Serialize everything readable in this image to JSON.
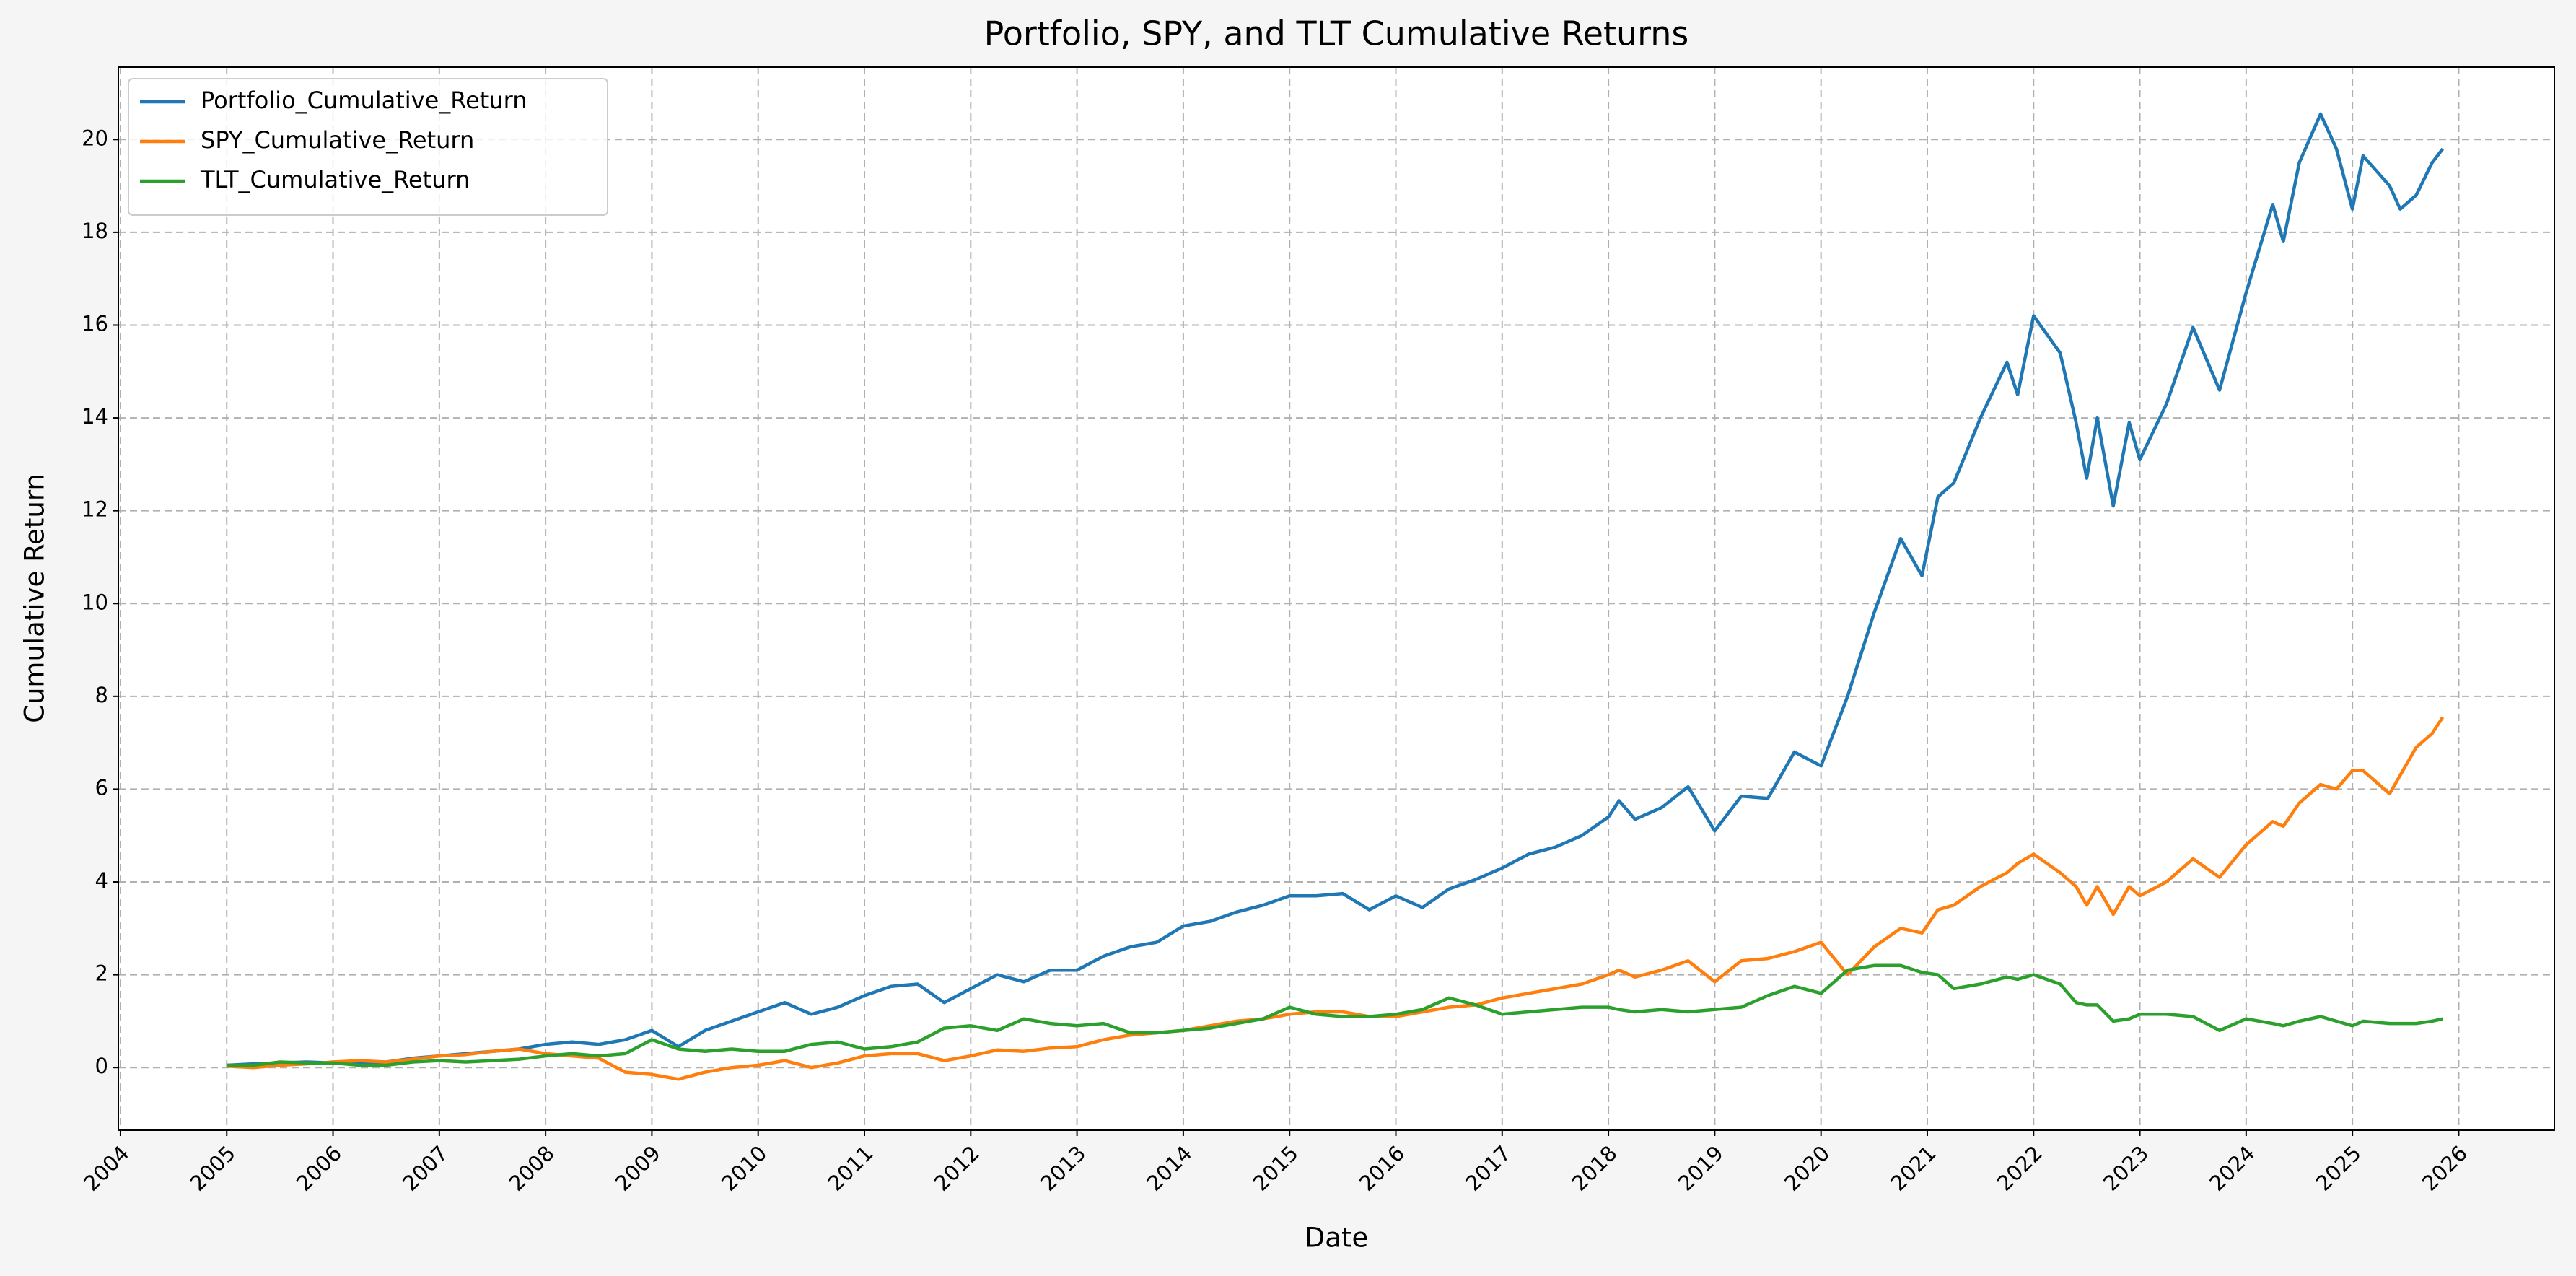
{
  "chart_data": {
    "type": "line",
    "title": "Portfolio, SPY, and TLT Cumulative Returns",
    "x_label": "Date",
    "y_label": "Cumulative Return",
    "x": [
      2005,
      2005.25,
      2005.5,
      2005.75,
      2006,
      2006.25,
      2006.5,
      2006.75,
      2007,
      2007.25,
      2007.5,
      2007.75,
      2008,
      2008.25,
      2008.5,
      2008.75,
      2009,
      2009.25,
      2009.5,
      2009.75,
      2010,
      2010.25,
      2010.5,
      2010.75,
      2011,
      2011.25,
      2011.5,
      2011.75,
      2012,
      2012.25,
      2012.5,
      2012.75,
      2013,
      2013.25,
      2013.5,
      2013.75,
      2014,
      2014.25,
      2014.5,
      2014.75,
      2015,
      2015.25,
      2015.5,
      2015.75,
      2016,
      2016.25,
      2016.5,
      2016.75,
      2017,
      2017.25,
      2017.5,
      2017.75,
      2018,
      2018.1,
      2018.25,
      2018.5,
      2018.75,
      2019,
      2019.25,
      2019.5,
      2019.75,
      2020,
      2020.25,
      2020.5,
      2020.75,
      2020.95,
      2021.1,
      2021.25,
      2021.5,
      2021.75,
      2021.85,
      2022,
      2022.25,
      2022.4,
      2022.5,
      2022.6,
      2022.75,
      2022.9,
      2023,
      2023.25,
      2023.5,
      2023.75,
      2024,
      2024.25,
      2024.35,
      2024.5,
      2024.7,
      2024.85,
      2025,
      2025.1,
      2025.35,
      2025.45,
      2025.6,
      2025.75,
      2025.85
    ],
    "series": [
      {
        "name": "Portfolio_Cumulative_Return",
        "color": "#1f77b4",
        "values": [
          0.05,
          0.08,
          0.1,
          0.12,
          0.1,
          0.1,
          0.12,
          0.2,
          0.25,
          0.3,
          0.35,
          0.4,
          0.5,
          0.55,
          0.5,
          0.6,
          0.8,
          0.45,
          0.8,
          1.0,
          1.2,
          1.4,
          1.15,
          1.3,
          1.55,
          1.75,
          1.8,
          1.4,
          1.7,
          2.0,
          1.85,
          2.1,
          2.1,
          2.4,
          2.6,
          2.7,
          3.05,
          3.15,
          3.35,
          3.5,
          3.7,
          3.7,
          3.75,
          3.4,
          3.7,
          3.45,
          3.85,
          4.05,
          4.3,
          4.6,
          4.75,
          5.0,
          5.4,
          5.75,
          5.35,
          5.6,
          6.05,
          5.1,
          5.85,
          5.8,
          6.8,
          6.5,
          8.0,
          9.8,
          11.4,
          10.6,
          12.3,
          12.6,
          14.0,
          15.2,
          14.5,
          16.2,
          15.4,
          13.9,
          12.7,
          14.0,
          12.1,
          13.9,
          13.1,
          14.3,
          15.95,
          14.6,
          16.7,
          18.6,
          17.8,
          19.5,
          20.55,
          19.8,
          18.5,
          19.65,
          19.0,
          18.5,
          18.8,
          19.5,
          19.8
        ]
      },
      {
        "name": "SPY_Cumulative_Return",
        "color": "#ff7f0e",
        "values": [
          0.03,
          0.0,
          0.05,
          0.08,
          0.12,
          0.15,
          0.12,
          0.18,
          0.25,
          0.28,
          0.35,
          0.4,
          0.3,
          0.25,
          0.2,
          -0.1,
          -0.15,
          -0.25,
          -0.1,
          0.0,
          0.05,
          0.15,
          0.0,
          0.1,
          0.25,
          0.3,
          0.3,
          0.15,
          0.25,
          0.38,
          0.35,
          0.42,
          0.45,
          0.6,
          0.7,
          0.75,
          0.8,
          0.9,
          1.0,
          1.05,
          1.15,
          1.2,
          1.2,
          1.1,
          1.1,
          1.2,
          1.3,
          1.35,
          1.5,
          1.6,
          1.7,
          1.8,
          2.0,
          2.1,
          1.95,
          2.1,
          2.3,
          1.85,
          2.3,
          2.35,
          2.5,
          2.7,
          2.0,
          2.6,
          3.0,
          2.9,
          3.4,
          3.5,
          3.9,
          4.2,
          4.4,
          4.6,
          4.2,
          3.9,
          3.5,
          3.9,
          3.3,
          3.9,
          3.7,
          4.0,
          4.5,
          4.1,
          4.8,
          5.3,
          5.2,
          5.7,
          6.1,
          6.0,
          6.4,
          6.4,
          5.9,
          6.3,
          6.9,
          7.2,
          7.55
        ]
      },
      {
        "name": "TLT_Cumulative_Return",
        "color": "#2ca02c",
        "values": [
          0.05,
          0.05,
          0.12,
          0.1,
          0.1,
          0.05,
          0.05,
          0.12,
          0.15,
          0.12,
          0.15,
          0.18,
          0.25,
          0.3,
          0.25,
          0.3,
          0.6,
          0.4,
          0.35,
          0.4,
          0.35,
          0.35,
          0.5,
          0.55,
          0.4,
          0.45,
          0.55,
          0.85,
          0.9,
          0.8,
          1.05,
          0.95,
          0.9,
          0.95,
          0.75,
          0.75,
          0.8,
          0.85,
          0.95,
          1.05,
          1.3,
          1.15,
          1.1,
          1.1,
          1.15,
          1.25,
          1.5,
          1.35,
          1.15,
          1.2,
          1.25,
          1.3,
          1.3,
          1.25,
          1.2,
          1.25,
          1.2,
          1.25,
          1.3,
          1.55,
          1.75,
          1.6,
          2.1,
          2.2,
          2.2,
          2.05,
          2.0,
          1.7,
          1.8,
          1.95,
          1.9,
          2.0,
          1.8,
          1.4,
          1.35,
          1.35,
          1.0,
          1.05,
          1.15,
          1.15,
          1.1,
          0.8,
          1.05,
          0.95,
          0.9,
          1.0,
          1.1,
          1.0,
          0.9,
          1.0,
          0.95,
          0.95,
          0.95,
          1.0,
          1.05
        ]
      }
    ],
    "xlim": [
      2003.98,
      2026.9
    ],
    "xticks": [
      2004,
      2005,
      2006,
      2007,
      2008,
      2009,
      2010,
      2011,
      2012,
      2013,
      2014,
      2015,
      2016,
      2017,
      2018,
      2019,
      2020,
      2021,
      2022,
      2023,
      2024,
      2025,
      2026
    ],
    "ylim": [
      -1.35,
      21.56
    ],
    "yticks": [
      0,
      2,
      4,
      6,
      8,
      10,
      12,
      14,
      16,
      18,
      20
    ],
    "grid": true,
    "legend": "upper left"
  }
}
